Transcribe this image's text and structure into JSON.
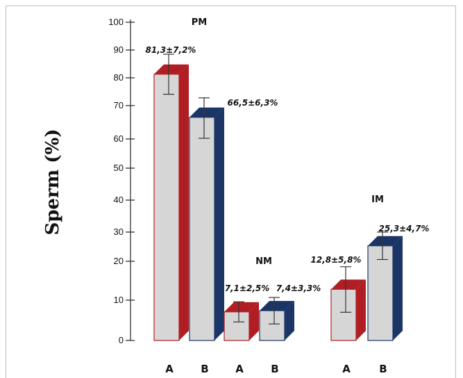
{
  "chart_data": {
    "type": "bar",
    "title": "",
    "xlabel": "",
    "ylabel": "Sperm (%)",
    "ylim": [
      0,
      100
    ],
    "y_ticks": [
      "0",
      "10",
      "20",
      "30",
      "40",
      "50",
      "60",
      "70",
      "80",
      "90",
      "100"
    ],
    "grid": false,
    "legend": "none",
    "colors": {
      "A": "#b01e23",
      "B": "#1b3566",
      "face": "#d6d6d6"
    },
    "groups": [
      {
        "name": "PM",
        "bars": [
          {
            "category": "A",
            "value": 81.3,
            "error": 7.2,
            "label": "81,3±7,2%"
          },
          {
            "category": "B",
            "value": 66.5,
            "error": 6.3,
            "label": "66,5±6,3%"
          }
        ]
      },
      {
        "name": "NM",
        "bars": [
          {
            "category": "A",
            "value": 7.1,
            "error": 2.5,
            "label": "7,1±2,5%"
          },
          {
            "category": "B",
            "value": 7.4,
            "error": 3.3,
            "label": "7,4±3,3%"
          }
        ]
      },
      {
        "name": "IM",
        "bars": [
          {
            "category": "A",
            "value": 12.8,
            "error": 5.8,
            "label": "12,8±5,8%"
          },
          {
            "category": "B",
            "value": 25.3,
            "error": 4.7,
            "label": "25,3±4,7%"
          }
        ]
      }
    ]
  }
}
